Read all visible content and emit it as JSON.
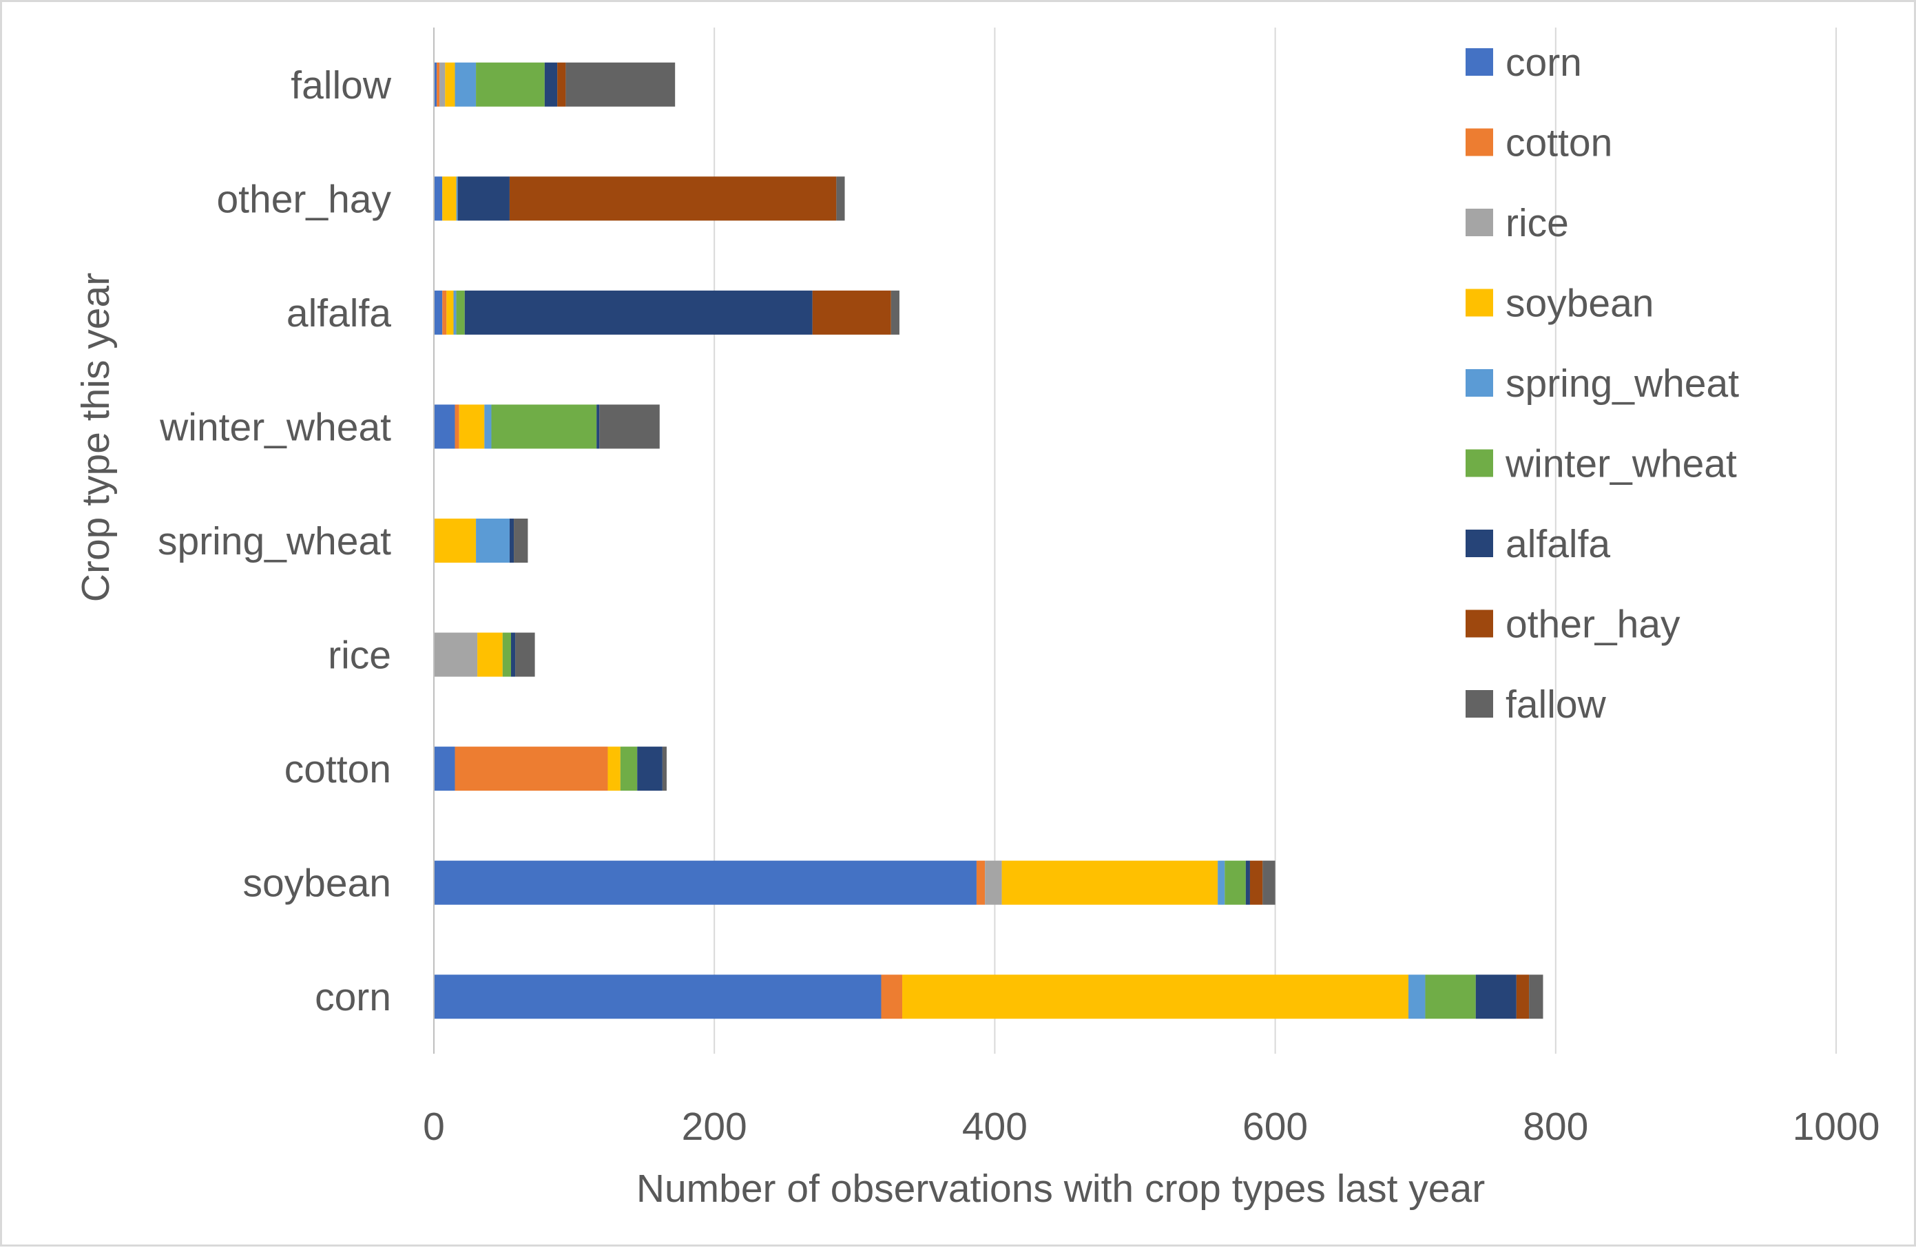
{
  "chart_data": {
    "type": "bar",
    "orientation": "horizontal",
    "stacked": true,
    "title": "",
    "xlabel": "Number of observations with crop types last year",
    "ylabel": "Crop type this year",
    "xlim": [
      0,
      1000
    ],
    "xticks": [
      "0",
      "200",
      "400",
      "600",
      "800",
      "1000"
    ],
    "grid": true,
    "legend_position": "right",
    "categories": [
      "corn",
      "soybean",
      "cotton",
      "rice",
      "spring_wheat",
      "winter_wheat",
      "alfalfa",
      "other_hay",
      "fallow"
    ],
    "series": [
      {
        "name": "corn",
        "color": "#4472C4",
        "values": [
          319,
          387,
          15,
          0,
          0,
          15,
          6,
          6,
          2
        ]
      },
      {
        "name": "cotton",
        "color": "#ED7D31",
        "values": [
          15,
          6,
          109,
          0,
          0,
          3,
          3,
          0,
          2
        ]
      },
      {
        "name": "rice",
        "color": "#A5A5A5",
        "values": [
          0,
          12,
          0,
          31,
          0,
          0,
          0,
          0,
          4
        ]
      },
      {
        "name": "soybean",
        "color": "#FFC000",
        "values": [
          361,
          154,
          9,
          18,
          30,
          18,
          5,
          10,
          7
        ]
      },
      {
        "name": "spring_wheat",
        "color": "#5B9BD5",
        "values": [
          12,
          5,
          0,
          0,
          24,
          5,
          2,
          1,
          15
        ]
      },
      {
        "name": "winter_wheat",
        "color": "#70AD47",
        "values": [
          36,
          15,
          12,
          6,
          0,
          75,
          6,
          0,
          49
        ]
      },
      {
        "name": "alfalfa",
        "color": "#264478",
        "values": [
          29,
          3,
          18,
          3,
          3,
          2,
          248,
          37,
          9
        ]
      },
      {
        "name": "other_hay",
        "color": "#9E480E",
        "values": [
          9,
          9,
          0,
          0,
          0,
          0,
          56,
          233,
          6
        ]
      },
      {
        "name": "fallow",
        "color": "#636363",
        "values": [
          10,
          9,
          3,
          14,
          10,
          43,
          6,
          6,
          78
        ]
      }
    ]
  }
}
